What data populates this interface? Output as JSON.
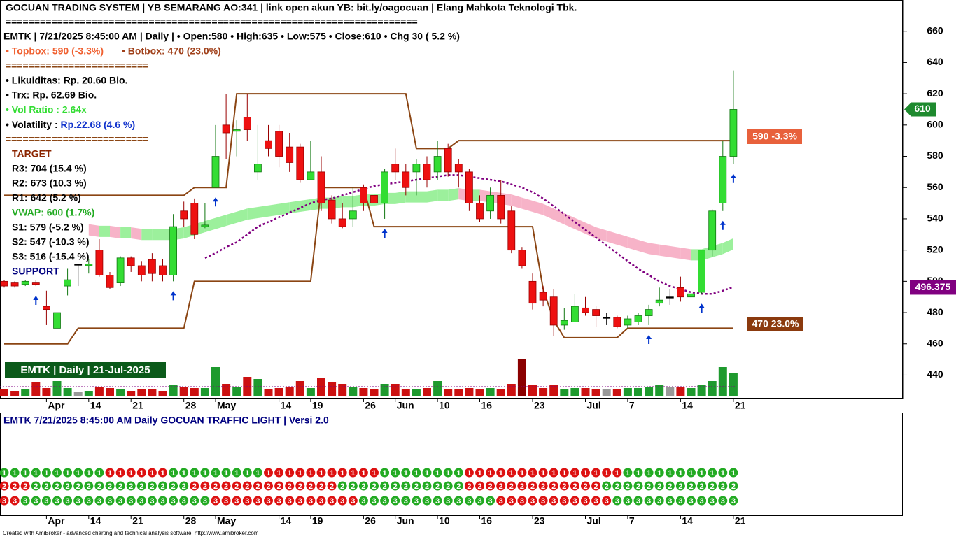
{
  "header": {
    "title": "GOCUAN TRADING SYSTEM | YB SEMARANG AO:341 | link open akun YB: bit.ly/oagocuan  | Elang Mahkota Teknologi Tbk.",
    "separator_long": "========================================================================",
    "info": "EMTK | 7/21/2025 8:45:00 AM | Daily |  • Open:580 • High:635 • Low:575 • Close:610 • Chg 30 ( 5.2 %)",
    "topbox": "• Topbox: 590 (-3.3%)",
    "botbox": "• Botbox: 470 (23.0%)",
    "separator_short": "=========================",
    "likuiditas": "• Likuiditas: Rp.  20.60 Bio.",
    "trx": "• Trx: Rp.  62.69 Bio.",
    "vol_ratio": "• Vol Ratio :  2.64x",
    "volatility_label": "• Volatility :  ",
    "volatility_value": "Rp.22.68 (4.6 %)",
    "target": "TARGET",
    "r3": "R3: 704 (15.4 %)",
    "r2": "R2: 673 (10.3 %)",
    "r1": "R1: 642 (5.2 %)",
    "vwap": "VWAP: 600 (1.7%)",
    "s1": "S1: 579 (-5.2 %)",
    "s2": "S2: 547 (-10.3 %)",
    "s3": "S3: 516 (-15.4 %)",
    "support": "SUPPORT",
    "topbox_tag": "590 -3.3%",
    "botbox_tag": "470 23.0%",
    "symbol_box": "EMTK | Daily | 21-Jul-2025"
  },
  "chart_data": {
    "type": "candlestick",
    "categories": [
      null,
      null,
      null,
      null,
      "Apr",
      null,
      null,
      null,
      "14",
      null,
      null,
      null,
      "21",
      null,
      null,
      null,
      null,
      "28",
      null,
      null,
      "May",
      null,
      null,
      null,
      null,
      null,
      "14",
      null,
      null,
      "19",
      null,
      null,
      null,
      null,
      "26",
      null,
      null,
      "Jun",
      null,
      null,
      null,
      "10",
      null,
      null,
      null,
      "16",
      null,
      null,
      null,
      null,
      "23",
      null,
      null,
      null,
      null,
      "Jul",
      null,
      null,
      null,
      "7",
      null,
      null,
      null,
      null,
      "14",
      null,
      null,
      null,
      null,
      "21"
    ],
    "ohlc": {
      "open": [
        500,
        499,
        498,
        499,
        484,
        470,
        497,
        511,
        510,
        520,
        504,
        499,
        515,
        510,
        514,
        510,
        504,
        545,
        550,
        535,
        560,
        600,
        596,
        605,
        570,
        590,
        596,
        586,
        586,
        565,
        570,
        552,
        540,
        540,
        560,
        555,
        550,
        575,
        570,
        570,
        575,
        570,
        585,
        575,
        570,
        550,
        545,
        555,
        545,
        520,
        500,
        493,
        490,
        472,
        474,
        483,
        482,
        477,
        477,
        472,
        474,
        478,
        486,
        490,
        496,
        490,
        493,
        520,
        550,
        580
      ],
      "high": [
        501,
        500,
        501,
        501,
        494,
        489,
        508,
        511,
        514,
        527,
        506,
        516,
        516,
        513,
        518,
        514,
        543,
        551,
        553,
        550,
        600,
        620,
        603,
        620,
        600,
        600,
        600,
        595,
        588,
        590,
        580,
        555,
        550,
        560,
        562,
        560,
        572,
        585,
        575,
        578,
        580,
        590,
        588,
        578,
        572,
        555,
        560,
        565,
        548,
        522,
        505,
        497,
        495,
        483,
        492,
        490,
        484,
        480,
        478,
        478,
        480,
        485,
        496,
        495,
        503,
        493,
        520,
        546,
        590,
        635
      ],
      "low": [
        496,
        496,
        497,
        497,
        472,
        470,
        491,
        497,
        505,
        503,
        495,
        497,
        506,
        500,
        500,
        500,
        500,
        535,
        527,
        534,
        560,
        578,
        580,
        590,
        565,
        580,
        573,
        570,
        563,
        565,
        545,
        537,
        534,
        535,
        545,
        540,
        540,
        565,
        555,
        555,
        560,
        565,
        567,
        560,
        545,
        538,
        540,
        537,
        518,
        508,
        482,
        484,
        465,
        469,
        474,
        478,
        471,
        472,
        470,
        470,
        472,
        472,
        484,
        485,
        487,
        486,
        492,
        516,
        545,
        575
      ],
      "close": [
        497,
        497,
        500,
        498,
        482,
        480,
        501,
        511,
        511,
        504,
        496,
        515,
        510,
        504,
        505,
        504,
        535,
        540,
        530,
        536,
        580,
        595,
        597,
        597,
        575,
        585,
        580,
        576,
        565,
        570,
        550,
        540,
        535,
        545,
        550,
        550,
        570,
        570,
        560,
        575,
        565,
        580,
        570,
        570,
        550,
        540,
        555,
        540,
        520,
        510,
        486,
        488,
        472,
        475,
        484,
        480,
        478,
        477,
        471,
        476,
        478,
        482,
        488,
        490,
        490,
        492,
        520,
        545,
        580,
        610
      ]
    },
    "up_color": "#33dd33",
    "down_color": "#ee1111",
    "top_box": {
      "color": "#8b4513",
      "values": [
        555,
        555,
        555,
        555,
        555,
        555,
        555,
        555,
        555,
        555,
        555,
        555,
        555,
        555,
        555,
        555,
        555,
        555,
        560,
        560,
        560,
        560,
        620,
        620,
        620,
        620,
        620,
        620,
        620,
        620,
        620,
        620,
        620,
        620,
        620,
        620,
        620,
        620,
        620,
        585,
        585,
        585,
        585,
        590,
        590,
        590,
        590,
        590,
        590,
        590,
        590,
        590,
        590,
        590,
        590,
        590,
        590,
        590,
        590,
        590,
        590,
        590,
        590,
        590,
        590,
        590,
        590,
        590,
        590,
        590
      ]
    },
    "bottom_box": {
      "color": "#8b4513",
      "values": [
        460,
        460,
        460,
        460,
        460,
        460,
        460,
        470,
        470,
        470,
        470,
        470,
        470,
        470,
        470,
        470,
        470,
        470,
        500,
        500,
        500,
        500,
        500,
        500,
        500,
        500,
        500,
        500,
        500,
        500,
        560,
        560,
        560,
        560,
        560,
        535,
        535,
        535,
        535,
        535,
        535,
        535,
        535,
        535,
        535,
        535,
        535,
        535,
        535,
        535,
        535,
        495,
        475,
        464,
        464,
        464,
        464,
        464,
        464,
        470,
        470,
        470,
        470,
        470,
        470,
        470,
        470,
        470,
        470,
        470
      ]
    },
    "vwap_line": {
      "color": "#800080",
      "values": [
        null,
        null,
        null,
        null,
        null,
        null,
        null,
        null,
        null,
        null,
        null,
        null,
        null,
        null,
        null,
        null,
        null,
        null,
        null,
        515,
        518,
        522,
        525,
        530,
        535,
        538,
        541,
        544,
        547,
        550,
        552,
        553,
        555,
        557,
        559,
        561,
        562,
        563,
        564,
        565,
        566,
        567,
        568,
        568,
        567,
        566,
        565,
        564,
        562,
        560,
        557,
        553,
        548,
        543,
        538,
        533,
        528,
        523,
        518,
        513,
        508,
        504,
        500,
        497,
        495,
        493,
        492,
        492,
        494,
        496.375
      ]
    },
    "ribbon": {
      "rising_color": "#9cf09c",
      "falling_color": "#f7b3c8",
      "values": [
        null,
        null,
        null,
        null,
        null,
        null,
        null,
        null,
        533,
        532,
        532,
        531,
        531,
        530,
        530,
        530,
        530,
        531,
        533,
        535,
        537,
        539,
        541,
        543,
        544,
        545,
        546,
        547,
        548,
        549,
        550,
        550,
        551,
        551,
        552,
        552,
        553,
        553,
        554,
        554,
        554,
        555,
        555,
        556,
        555,
        555,
        554,
        553,
        552,
        550,
        548,
        546,
        543,
        540,
        537,
        534,
        531,
        529,
        527,
        525,
        523,
        521,
        520,
        519,
        518,
        517,
        517,
        519,
        521,
        524
      ]
    },
    "volume": [
      10,
      8,
      10,
      20,
      12,
      22,
      12,
      6,
      8,
      14,
      12,
      10,
      8,
      10,
      10,
      8,
      16,
      14,
      12,
      12,
      42,
      18,
      14,
      28,
      25,
      10,
      12,
      14,
      22,
      12,
      26,
      20,
      18,
      14,
      12,
      10,
      18,
      18,
      10,
      10,
      12,
      22,
      10,
      10,
      12,
      10,
      12,
      10,
      18,
      54,
      16,
      12,
      16,
      10,
      12,
      12,
      10,
      10,
      10,
      12,
      12,
      14,
      16,
      14,
      14,
      12,
      16,
      22,
      42,
      33
    ],
    "signals": [
      3,
      16,
      20,
      36,
      61,
      66,
      68,
      69
    ],
    "signal_color": "#0033cc",
    "ylim": [
      425,
      680
    ],
    "yticks": [
      440,
      460,
      480,
      500,
      520,
      540,
      560,
      580,
      600,
      620,
      640,
      660
    ]
  },
  "traffic_light": {
    "title": "EMTK  7/21/2025 8:45:00 AM  Daily  GOCUAN TRAFFIC LIGHT | Versi 2.0",
    "rows": [
      {
        "label": "1",
        "colors": [
          "#2a2",
          "#2a2",
          "#2a2",
          "#2a2",
          "#2a2",
          "#2a2",
          "#2a2",
          "#2a2",
          "#2a2",
          "#2a2",
          "#d11",
          "#d11",
          "#d11",
          "#d11",
          "#d11",
          "#d11",
          "#2a2",
          "#2a2",
          "#2a2",
          "#2a2",
          "#2a2",
          "#2a2",
          "#2a2",
          "#2a2",
          "#2a2",
          "#d11",
          "#d11",
          "#d11",
          "#d11",
          "#d11",
          "#d11",
          "#d11",
          "#d11",
          "#d11",
          "#d11",
          "#d11",
          "#2a2",
          "#2a2",
          "#2a2",
          "#2a2",
          "#2a2",
          "#2a2",
          "#2a2",
          "#2a2",
          "#d11",
          "#d11",
          "#d11",
          "#d11",
          "#d11",
          "#d11",
          "#d11",
          "#d11",
          "#d11",
          "#d11",
          "#d11",
          "#d11",
          "#d11",
          "#d11",
          "#d11",
          "#2a2",
          "#2a2",
          "#2a2",
          "#2a2",
          "#2a2",
          "#2a2",
          "#2a2",
          "#2a2",
          "#2a2",
          "#2a2",
          "#2a2"
        ]
      },
      {
        "label": "2",
        "colors": [
          "#d11",
          "#d11",
          "#d11",
          "#2a2",
          "#2a2",
          "#2a2",
          "#2a2",
          "#2a2",
          "#2a2",
          "#2a2",
          "#2a2",
          "#2a2",
          "#2a2",
          "#2a2",
          "#2a2",
          "#2a2",
          "#2a2",
          "#2a2",
          "#d11",
          "#d11",
          "#d11",
          "#d11",
          "#d11",
          "#d11",
          "#d11",
          "#d11",
          "#d11",
          "#d11",
          "#d11",
          "#d11",
          "#d11",
          "#d11",
          "#2a2",
          "#2a2",
          "#2a2",
          "#2a2",
          "#2a2",
          "#2a2",
          "#2a2",
          "#2a2",
          "#2a2",
          "#2a2",
          "#2a2",
          "#2a2",
          "#d11",
          "#d11",
          "#d11",
          "#d11",
          "#d11",
          "#d11",
          "#d11",
          "#d11",
          "#d11",
          "#d11",
          "#d11",
          "#d11",
          "#d11",
          "#2a2",
          "#2a2",
          "#2a2",
          "#2a2",
          "#2a2",
          "#2a2",
          "#2a2",
          "#2a2",
          "#2a2",
          "#2a2",
          "#2a2",
          "#2a2",
          "#2a2"
        ]
      },
      {
        "label": "3",
        "colors": [
          "#d11",
          "#d11",
          "#2a2",
          "#2a2",
          "#2a2",
          "#2a2",
          "#2a2",
          "#2a2",
          "#2a2",
          "#2a2",
          "#2a2",
          "#2a2",
          "#2a2",
          "#2a2",
          "#2a2",
          "#2a2",
          "#2a2",
          "#2a2",
          "#2a2",
          "#2a2",
          "#d11",
          "#d11",
          "#d11",
          "#d11",
          "#d11",
          "#d11",
          "#d11",
          "#d11",
          "#d11",
          "#d11",
          "#d11",
          "#d11",
          "#d11",
          "#d11",
          "#2a2",
          "#2a2",
          "#2a2",
          "#2a2",
          "#2a2",
          "#2a2",
          "#2a2",
          "#2a2",
          "#2a2",
          "#2a2",
          "#2a2",
          "#2a2",
          "#2a2",
          "#d11",
          "#d11",
          "#d11",
          "#d11",
          "#d11",
          "#d11",
          "#d11",
          "#d11",
          "#d11",
          "#d11",
          "#d11",
          "#2a2",
          "#2a2",
          "#2a2",
          "#2a2",
          "#2a2",
          "#2a2",
          "#2a2",
          "#2a2",
          "#2a2",
          "#2a2",
          "#2a2",
          "#2a2"
        ]
      }
    ]
  },
  "footer": "Created with AmiBroker - advanced charting and technical analysis software. http://www.amibroker.com"
}
